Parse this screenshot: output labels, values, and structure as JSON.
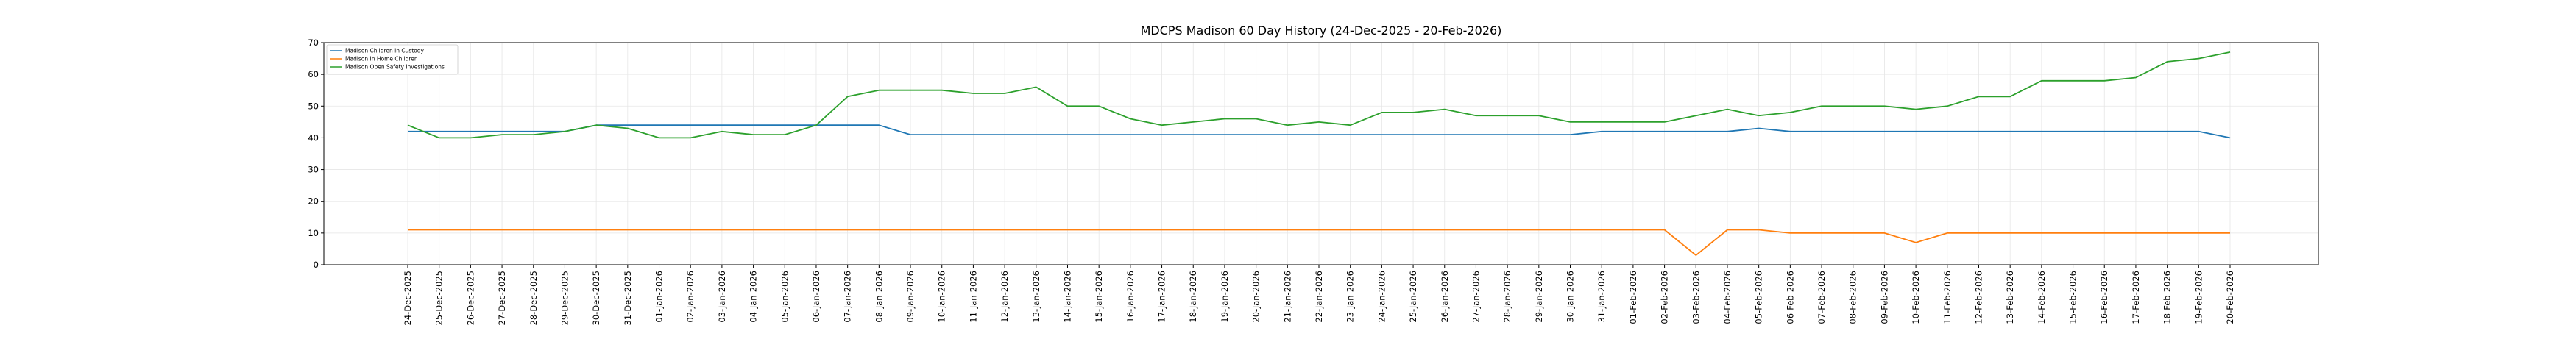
{
  "chart_data": {
    "type": "line",
    "title": "MDCPS Madison 60 Day History (24-Dec-2025 - 20-Feb-2026)",
    "xlabel": "",
    "ylabel": "",
    "ylim": [
      0,
      70
    ],
    "yticks": [
      0,
      10,
      20,
      30,
      40,
      50,
      60,
      70
    ],
    "grid": true,
    "legend_position": "top-left",
    "categories": [
      "24-Dec-2025",
      "25-Dec-2025",
      "26-Dec-2025",
      "27-Dec-2025",
      "28-Dec-2025",
      "29-Dec-2025",
      "30-Dec-2025",
      "31-Dec-2025",
      "01-Jan-2026",
      "02-Jan-2026",
      "03-Jan-2026",
      "04-Jan-2026",
      "05-Jan-2026",
      "06-Jan-2026",
      "07-Jan-2026",
      "08-Jan-2026",
      "09-Jan-2026",
      "10-Jan-2026",
      "11-Jan-2026",
      "12-Jan-2026",
      "13-Jan-2026",
      "14-Jan-2026",
      "15-Jan-2026",
      "16-Jan-2026",
      "17-Jan-2026",
      "18-Jan-2026",
      "19-Jan-2026",
      "20-Jan-2026",
      "21-Jan-2026",
      "22-Jan-2026",
      "23-Jan-2026",
      "24-Jan-2026",
      "25-Jan-2026",
      "26-Jan-2026",
      "27-Jan-2026",
      "28-Jan-2026",
      "29-Jan-2026",
      "30-Jan-2026",
      "31-Jan-2026",
      "01-Feb-2026",
      "02-Feb-2026",
      "03-Feb-2026",
      "04-Feb-2026",
      "05-Feb-2026",
      "06-Feb-2026",
      "07-Feb-2026",
      "08-Feb-2026",
      "09-Feb-2026",
      "10-Feb-2026",
      "11-Feb-2026",
      "12-Feb-2026",
      "13-Feb-2026",
      "14-Feb-2026",
      "15-Feb-2026",
      "16-Feb-2026",
      "17-Feb-2026",
      "18-Feb-2026",
      "19-Feb-2026",
      "20-Feb-2026"
    ],
    "series": [
      {
        "name": "Madison Children in Custody",
        "color": "#1f77b4",
        "values": [
          42,
          42,
          42,
          42,
          42,
          42,
          44,
          44,
          44,
          44,
          44,
          44,
          44,
          44,
          44,
          44,
          41,
          41,
          41,
          41,
          41,
          41,
          41,
          41,
          41,
          41,
          41,
          41,
          41,
          41,
          41,
          41,
          41,
          41,
          41,
          41,
          41,
          41,
          42,
          42,
          42,
          42,
          42,
          43,
          42,
          42,
          42,
          42,
          42,
          42,
          42,
          42,
          42,
          42,
          42,
          42,
          42,
          42,
          40
        ]
      },
      {
        "name": "Madison In Home Children",
        "color": "#ff7f0e",
        "values": [
          11,
          11,
          11,
          11,
          11,
          11,
          11,
          11,
          11,
          11,
          11,
          11,
          11,
          11,
          11,
          11,
          11,
          11,
          11,
          11,
          11,
          11,
          11,
          11,
          11,
          11,
          11,
          11,
          11,
          11,
          11,
          11,
          11,
          11,
          11,
          11,
          11,
          11,
          11,
          11,
          11,
          3,
          11,
          11,
          10,
          10,
          10,
          10,
          7,
          10,
          10,
          10,
          10,
          10,
          10,
          10,
          10,
          10,
          10
        ]
      },
      {
        "name": "Madison Open Safety Investigations",
        "color": "#2ca02c",
        "values": [
          44,
          40,
          40,
          41,
          41,
          42,
          44,
          43,
          40,
          40,
          42,
          41,
          41,
          44,
          53,
          55,
          55,
          55,
          54,
          54,
          56,
          50,
          50,
          46,
          44,
          45,
          46,
          46,
          44,
          45,
          44,
          48,
          48,
          49,
          47,
          47,
          47,
          45,
          45,
          45,
          45,
          47,
          49,
          47,
          48,
          50,
          50,
          50,
          49,
          50,
          53,
          53,
          58,
          58,
          58,
          59,
          64,
          65,
          67
        ]
      }
    ]
  }
}
